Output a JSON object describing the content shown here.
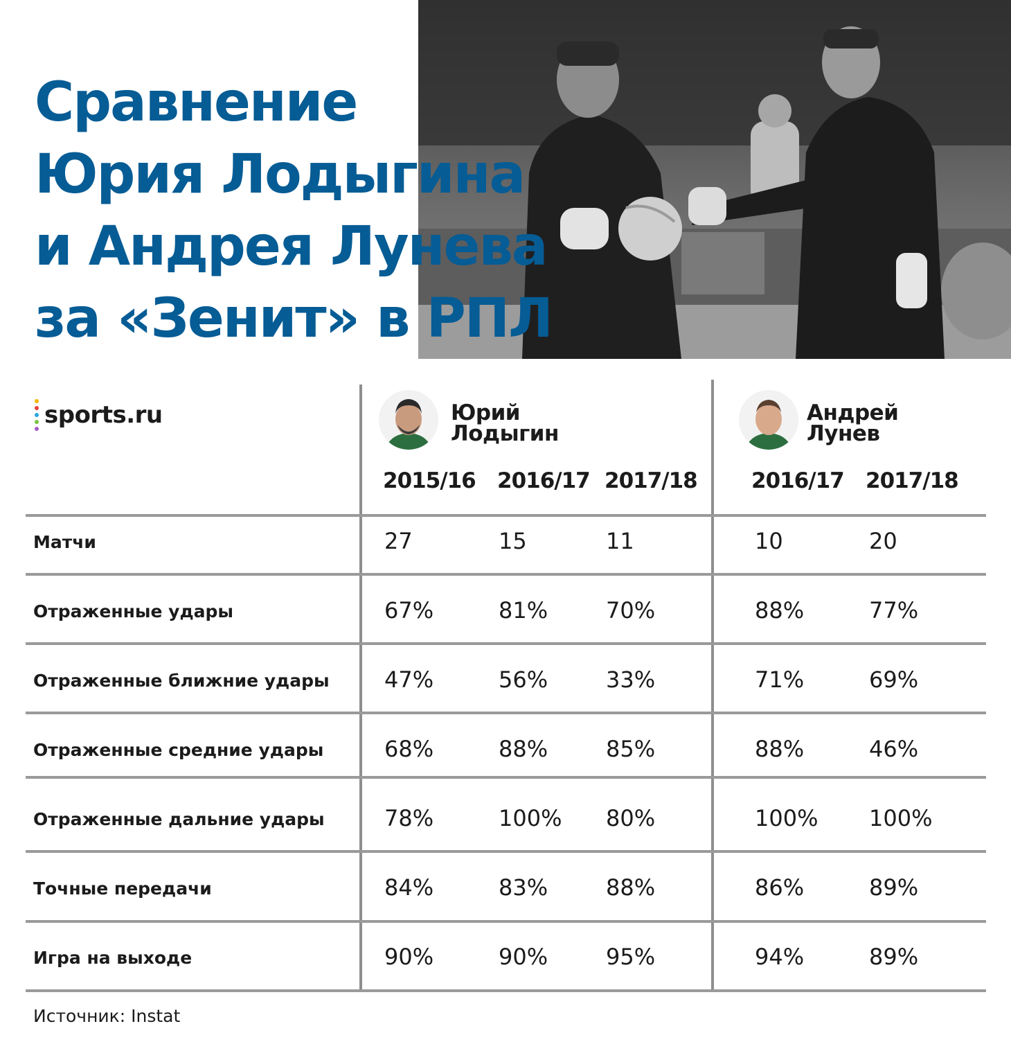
{
  "title_lines": [
    "Сравнение",
    "Юрия Лодыгина",
    "и Андрея Лунева",
    "за «Зенит» в РПЛ"
  ],
  "logo": {
    "text": "sports.ru",
    "dot_colors": [
      "#f2b705",
      "#e9403a",
      "#2aa7e0",
      "#7cc242",
      "#a45cc6"
    ]
  },
  "source": "Источник: Instat",
  "colors": {
    "title": "#065c95",
    "grid": "#9a9a9a",
    "text": "#1b1b1b"
  },
  "players": [
    {
      "first": "Юрий",
      "last": "Лодыгин",
      "seasons": [
        "2015/16",
        "2016/17",
        "2017/18"
      ]
    },
    {
      "first": "Андрей",
      "last": "Лунев",
      "seasons": [
        "2016/17",
        "2017/18"
      ]
    }
  ],
  "chart_data": {
    "type": "table",
    "title": "Сравнение Юрия Лодыгина и Андрея Лунева за «Зенит» в РПЛ",
    "columns": [
      {
        "player": "Юрий Лодыгин",
        "season": "2015/16"
      },
      {
        "player": "Юрий Лодыгин",
        "season": "2016/17"
      },
      {
        "player": "Юрий Лодыгин",
        "season": "2017/18"
      },
      {
        "player": "Андрей Лунев",
        "season": "2016/17"
      },
      {
        "player": "Андрей Лунев",
        "season": "2017/18"
      }
    ],
    "rows": [
      {
        "label": "Матчи",
        "values": [
          "27",
          "15",
          "11",
          "10",
          "20"
        ]
      },
      {
        "label": "Отраженные удары",
        "values": [
          "67%",
          "81%",
          "70%",
          "88%",
          "77%"
        ]
      },
      {
        "label": "Отраженные ближние удары",
        "values": [
          "47%",
          "56%",
          "33%",
          "71%",
          "69%"
        ]
      },
      {
        "label": "Отраженные средние удары",
        "values": [
          "68%",
          "88%",
          "85%",
          "88%",
          "46%"
        ]
      },
      {
        "label": "Отраженные дальние удары",
        "values": [
          "78%",
          "100%",
          "80%",
          "100%",
          "100%"
        ]
      },
      {
        "label": "Точные передачи",
        "values": [
          "84%",
          "83%",
          "88%",
          "86%",
          "89%"
        ]
      },
      {
        "label": "Игра на выходе",
        "values": [
          "90%",
          "90%",
          "95%",
          "94%",
          "89%"
        ]
      }
    ]
  }
}
